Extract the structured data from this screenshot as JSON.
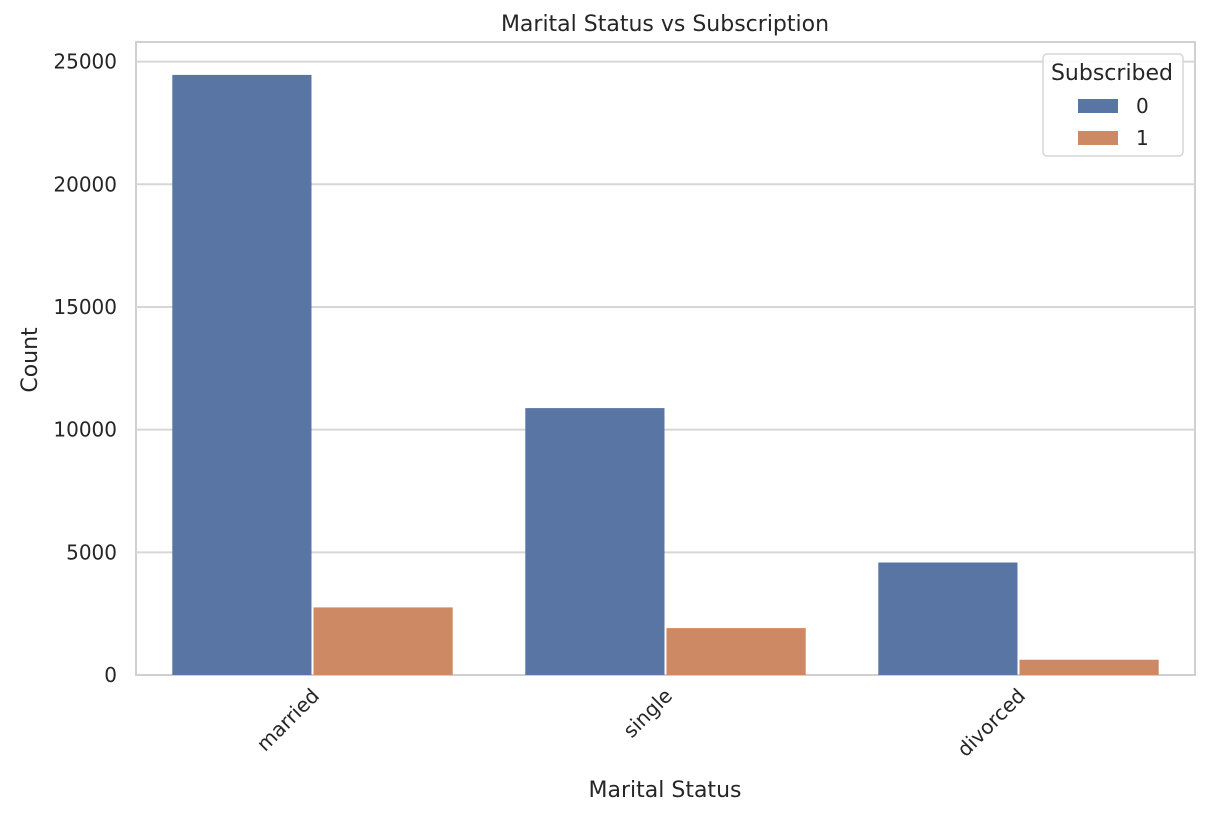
{
  "chart_data": {
    "type": "bar",
    "title": "Marital Status vs Subscription",
    "xlabel": "Marital Status",
    "ylabel": "Count",
    "categories": [
      "married",
      "single",
      "divorced"
    ],
    "series": [
      {
        "name": "0",
        "values": [
          24459,
          10878,
          4585
        ],
        "color": "#5875a4"
      },
      {
        "name": "1",
        "values": [
          2755,
          1912,
          622
        ],
        "color": "#cc8963"
      }
    ],
    "ylim": [
      0,
      25800
    ],
    "yticks": [
      0,
      5000,
      10000,
      15000,
      20000,
      25000
    ],
    "ytick_labels": [
      "0",
      "5000",
      "10000",
      "15000",
      "20000",
      "25000"
    ],
    "grid": true,
    "legend": {
      "title": "Subscribed",
      "placement": "top-right"
    }
  }
}
